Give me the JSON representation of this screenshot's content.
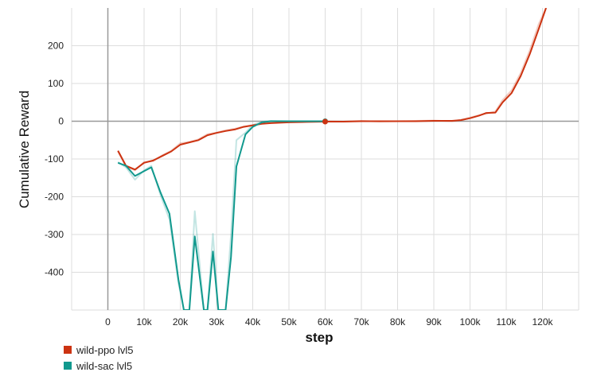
{
  "chart_data": {
    "type": "line",
    "title": "",
    "xlabel": "step",
    "ylabel": "Cumulative Reward",
    "xlim": [
      -10000,
      130000
    ],
    "ylim": [
      -500,
      300
    ],
    "x_ticks": [
      0,
      10000,
      20000,
      30000,
      40000,
      50000,
      60000,
      70000,
      80000,
      90000,
      100000,
      110000,
      120000
    ],
    "x_tick_labels": [
      "0",
      "10k",
      "20k",
      "30k",
      "40k",
      "50k",
      "60k",
      "70k",
      "80k",
      "90k",
      "100k",
      "110k",
      "120k"
    ],
    "y_ticks": [
      -400,
      -300,
      -200,
      -100,
      0,
      100,
      200
    ],
    "y_tick_labels": [
      "-400",
      "-300",
      "-200",
      "-100",
      "0",
      "100",
      "200"
    ],
    "grid": true,
    "legend_position": "bottom-left",
    "series": [
      {
        "name": "wild-ppo lvl5",
        "color": "#cc3311",
        "smoothed": [
          [
            2800,
            -78
          ],
          [
            5000,
            -118
          ],
          [
            7500,
            -128
          ],
          [
            10000,
            -110
          ],
          [
            12500,
            -104
          ],
          [
            15000,
            -92
          ],
          [
            17500,
            -80
          ],
          [
            20000,
            -62
          ],
          [
            22500,
            -56
          ],
          [
            25000,
            -50
          ],
          [
            27500,
            -37
          ],
          [
            30000,
            -31
          ],
          [
            32500,
            -26
          ],
          [
            35000,
            -22
          ],
          [
            37500,
            -15
          ],
          [
            40000,
            -11
          ],
          [
            42500,
            -7
          ],
          [
            45000,
            -5
          ],
          [
            50000,
            -3
          ],
          [
            55000,
            -2
          ],
          [
            60000,
            -1
          ],
          [
            65000,
            -1
          ],
          [
            70000,
            0
          ],
          [
            75000,
            0
          ],
          [
            80000,
            0
          ],
          [
            85000,
            0
          ],
          [
            90000,
            1
          ],
          [
            95000,
            1
          ],
          [
            97500,
            3
          ],
          [
            100000,
            8
          ],
          [
            102500,
            15
          ],
          [
            104500,
            22
          ],
          [
            107000,
            23
          ],
          [
            109000,
            50
          ],
          [
            111500,
            75
          ],
          [
            114000,
            120
          ],
          [
            116500,
            178
          ],
          [
            119000,
            245
          ],
          [
            121000,
            300
          ]
        ],
        "raw": [
          [
            2800,
            -80
          ],
          [
            5000,
            -120
          ],
          [
            7500,
            -130
          ],
          [
            10000,
            -108
          ],
          [
            12500,
            -106
          ],
          [
            15000,
            -90
          ],
          [
            17500,
            -78
          ],
          [
            20000,
            -58
          ],
          [
            22500,
            -55
          ],
          [
            25000,
            -48
          ],
          [
            27500,
            -34
          ],
          [
            30000,
            -30
          ],
          [
            32500,
            -24
          ],
          [
            35000,
            -20
          ],
          [
            37500,
            -14
          ],
          [
            40000,
            -10
          ],
          [
            42500,
            -6
          ],
          [
            45000,
            -4
          ],
          [
            50000,
            -2
          ],
          [
            55000,
            -1
          ],
          [
            60000,
            0
          ],
          [
            65000,
            -1
          ],
          [
            70000,
            1
          ],
          [
            75000,
            -1
          ],
          [
            80000,
            0
          ],
          [
            85000,
            1
          ],
          [
            90000,
            2
          ],
          [
            95000,
            0
          ],
          [
            97500,
            4
          ],
          [
            100000,
            10
          ],
          [
            102500,
            16
          ],
          [
            104500,
            20
          ],
          [
            107000,
            26
          ],
          [
            109000,
            56
          ],
          [
            111500,
            82
          ],
          [
            114000,
            128
          ],
          [
            116500,
            188
          ],
          [
            119000,
            258
          ],
          [
            121000,
            300
          ]
        ]
      },
      {
        "name": "wild-sac lvl5",
        "color": "#11998e",
        "smoothed": [
          [
            2800,
            -110
          ],
          [
            5000,
            -118
          ],
          [
            7500,
            -145
          ],
          [
            10000,
            -132
          ],
          [
            12000,
            -122
          ],
          [
            14500,
            -188
          ],
          [
            17000,
            -245
          ],
          [
            19500,
            -420
          ],
          [
            21000,
            -500
          ],
          [
            22500,
            -500
          ],
          [
            24000,
            -305
          ],
          [
            26500,
            -500
          ],
          [
            27500,
            -500
          ],
          [
            29000,
            -345
          ],
          [
            30500,
            -500
          ],
          [
            32500,
            -500
          ],
          [
            34000,
            -360
          ],
          [
            35500,
            -120
          ],
          [
            38000,
            -35
          ],
          [
            40000,
            -15
          ],
          [
            42500,
            -3
          ],
          [
            45000,
            0
          ],
          [
            50000,
            0
          ],
          [
            55000,
            0
          ],
          [
            60000,
            0
          ]
        ],
        "raw": [
          [
            2800,
            -108
          ],
          [
            5000,
            -122
          ],
          [
            7500,
            -155
          ],
          [
            10000,
            -130
          ],
          [
            12000,
            -118
          ],
          [
            14500,
            -195
          ],
          [
            17000,
            -260
          ],
          [
            19500,
            -430
          ],
          [
            21000,
            -500
          ],
          [
            22500,
            -500
          ],
          [
            24000,
            -238
          ],
          [
            26500,
            -500
          ],
          [
            27500,
            -500
          ],
          [
            29000,
            -298
          ],
          [
            30500,
            -500
          ],
          [
            32500,
            -500
          ],
          [
            34000,
            -300
          ],
          [
            35500,
            -50
          ],
          [
            38000,
            -30
          ],
          [
            40000,
            -10
          ],
          [
            42500,
            -2
          ],
          [
            45000,
            1
          ],
          [
            50000,
            0
          ],
          [
            55000,
            0
          ],
          [
            60000,
            0
          ]
        ]
      }
    ],
    "highlight_x": 60000
  }
}
